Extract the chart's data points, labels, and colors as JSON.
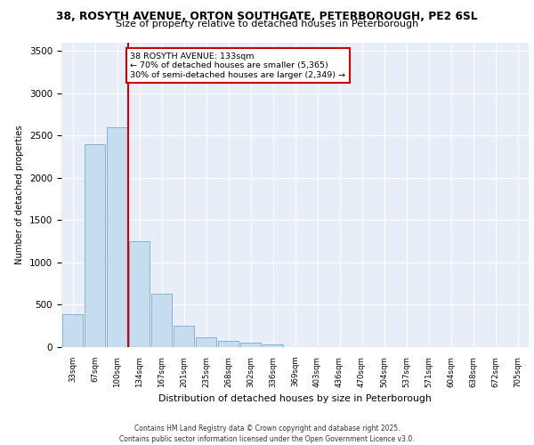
{
  "title_line1": "38, ROSYTH AVENUE, ORTON SOUTHGATE, PETERBOROUGH, PE2 6SL",
  "title_line2": "Size of property relative to detached houses in Peterborough",
  "xlabel": "Distribution of detached houses by size in Peterborough",
  "ylabel": "Number of detached properties",
  "annotation_line1": "38 ROSYTH AVENUE: 133sqm",
  "annotation_line2": "← 70% of detached houses are smaller (5,365)",
  "annotation_line3": "30% of semi-detached houses are larger (2,349) →",
  "categories": [
    "33sqm",
    "67sqm",
    "100sqm",
    "134sqm",
    "167sqm",
    "201sqm",
    "235sqm",
    "268sqm",
    "302sqm",
    "336sqm",
    "369sqm",
    "403sqm",
    "436sqm",
    "470sqm",
    "504sqm",
    "537sqm",
    "571sqm",
    "604sqm",
    "638sqm",
    "672sqm",
    "705sqm"
  ],
  "bar_heights": [
    390,
    2400,
    2600,
    1250,
    630,
    250,
    120,
    70,
    55,
    30,
    0,
    0,
    0,
    0,
    0,
    0,
    0,
    0,
    0,
    0,
    0
  ],
  "vline_index": 3,
  "bar_color": "#c5ddef",
  "bar_edge_color": "#7aaac8",
  "vline_color": "#cc0000",
  "annotation_box_color": "#cc0000",
  "background_color": "#e8eef8",
  "ylim": [
    0,
    3600
  ],
  "yticks": [
    0,
    500,
    1000,
    1500,
    2000,
    2500,
    3000,
    3500
  ],
  "footer_line1": "Contains HM Land Registry data © Crown copyright and database right 2025.",
  "footer_line2": "Contains public sector information licensed under the Open Government Licence v3.0."
}
